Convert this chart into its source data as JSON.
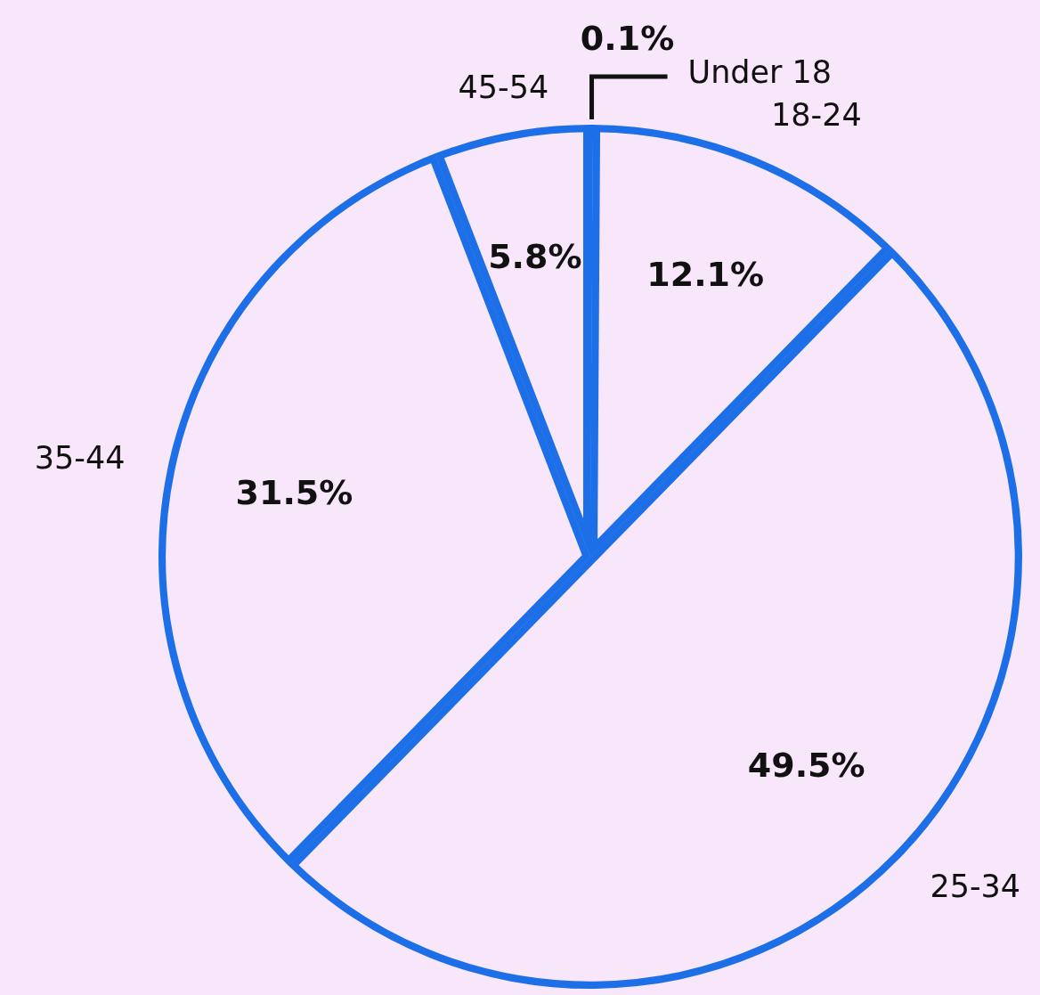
{
  "chart_data": {
    "type": "pie",
    "categories": [
      "Under 18",
      "18-24",
      "25-34",
      "35-44",
      "45-54"
    ],
    "values": [
      0.1,
      12.1,
      49.5,
      31.5,
      5.8
    ],
    "colors": [
      "#f8e6fb",
      "#f8e6fb",
      "#f8e6fb",
      "#f8e6fb",
      "#f8e6fb"
    ],
    "value_labels": [
      "0.1%",
      "12.1%",
      "49.5%",
      "31.5%",
      "5.8%"
    ],
    "legend": false
  }
}
